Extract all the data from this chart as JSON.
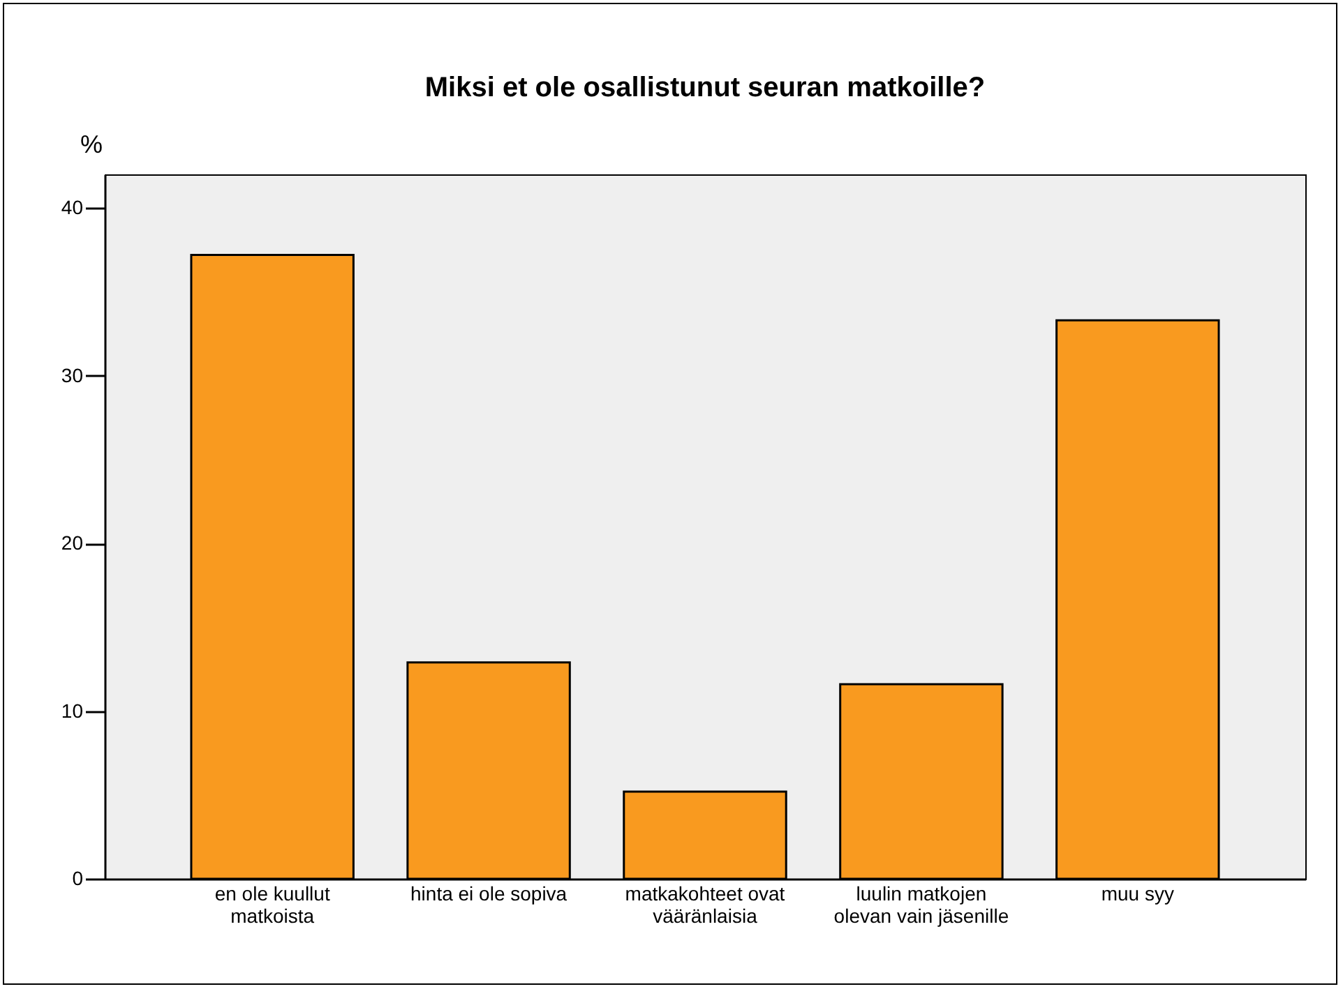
{
  "chart_data": {
    "type": "bar",
    "title": "Miksi et ole osallistunut seuran matkoille?",
    "ylabel": "%",
    "categories": [
      "en ole kuullut matkoista",
      "hinta ei ole sopiva",
      "matkakohteet ovat vääränlaisia",
      "luulin matkojen olevan vain jäsenille",
      "muu syy"
    ],
    "values": [
      37.2,
      12.9,
      5.2,
      11.6,
      33.3
    ],
    "color": "#f99a1f",
    "ylim": [
      0,
      42
    ],
    "yticks": [
      0,
      10,
      20,
      30,
      40
    ],
    "grid": false
  }
}
